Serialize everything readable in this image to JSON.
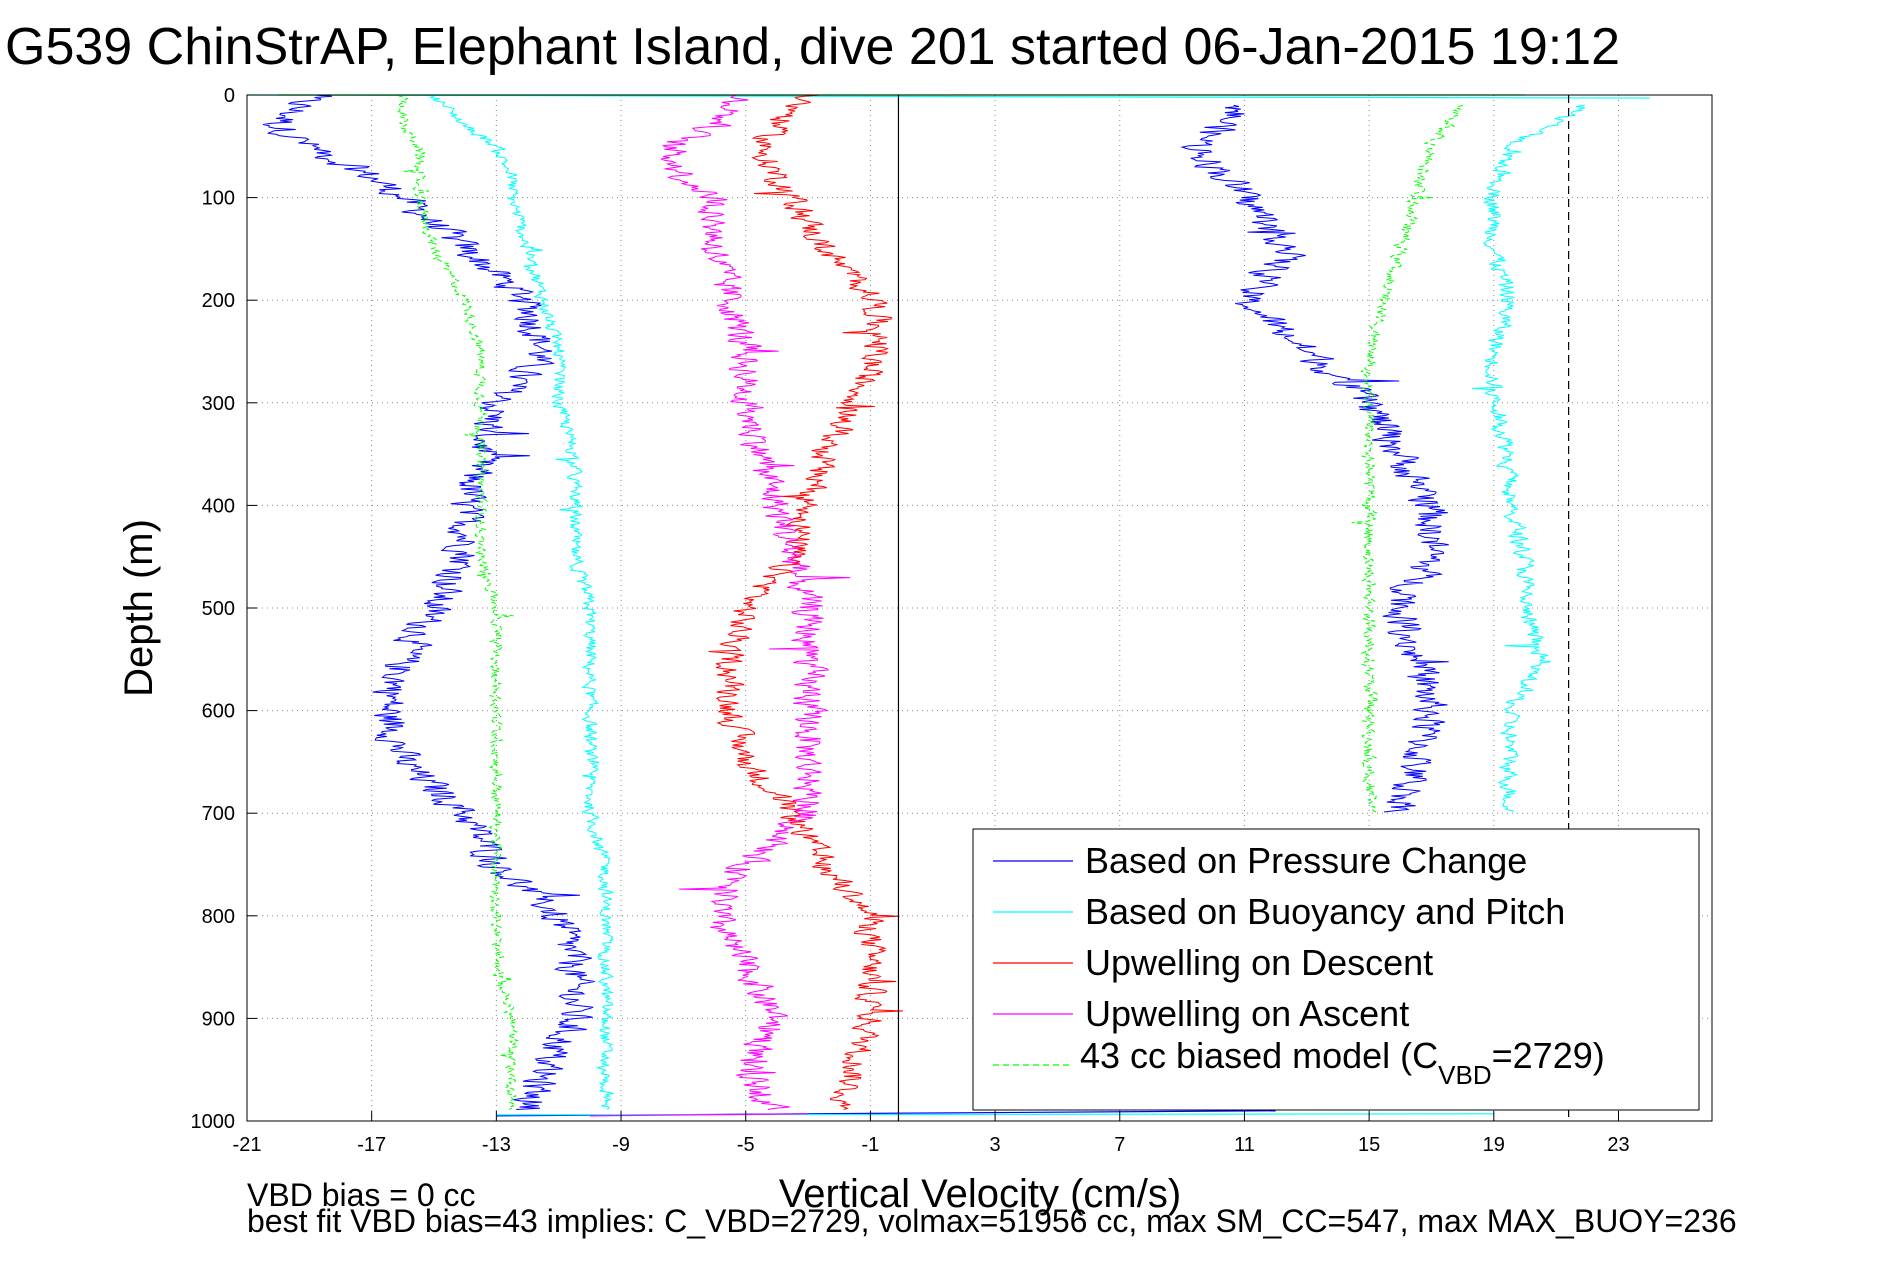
{
  "chart_data": {
    "type": "line",
    "title": "G539 ChinStrAP, Elephant Island, dive 201 started 06-Jan-2015 19:12",
    "xlabel": "Vertical Velocity (cm/s)",
    "ylabel": "Depth (m)",
    "xlim": [
      -21,
      26
    ],
    "ylim": [
      1000,
      0
    ],
    "y_reversed": true,
    "grid": true,
    "x_ticks": [
      -21,
      -17,
      -13,
      -9,
      -5,
      -1,
      3,
      7,
      11,
      15,
      19,
      23
    ],
    "y_ticks": [
      0,
      100,
      200,
      300,
      400,
      500,
      600,
      700,
      800,
      900,
      1000
    ],
    "vertical_reference_lines": [
      {
        "x": -0.1,
        "style": "solid",
        "color": "#000000"
      },
      {
        "x": 21.4,
        "style": "dashed",
        "color": "#000000"
      }
    ],
    "legend_position": "bottom-right",
    "legend": [
      {
        "label": "Based on Pressure Change",
        "color": "#0000ff",
        "style": "solid"
      },
      {
        "label": "Based on Buoyancy and Pitch",
        "color": "#00ffff",
        "style": "solid"
      },
      {
        "label": "Upwelling on Descent",
        "color": "#ff0000",
        "style": "solid"
      },
      {
        "label": "Upwelling on Ascent",
        "color": "#ff00ff",
        "style": "solid"
      },
      {
        "label_main": "43 cc biased model (C",
        "label_sub": "VBD",
        "label_tail": "=2729)",
        "color": "#00ff00",
        "style": "dashed"
      }
    ],
    "series": [
      {
        "id": "pressure-descent",
        "color": "#0000ff",
        "style": "solid",
        "noise": 0.8,
        "y": [
          0,
          30,
          50,
          80,
          100,
          150,
          200,
          250,
          300,
          350,
          400,
          450,
          500,
          550,
          600,
          650,
          700,
          750,
          800,
          850,
          900,
          950,
          990
        ],
        "x": [
          -19,
          -20,
          -19,
          -17,
          -16,
          -14,
          -12,
          -11.5,
          -13,
          -13.5,
          -14,
          -14,
          -15,
          -16,
          -16.5,
          -16,
          -14,
          -13,
          -11,
          -10.5,
          -10.5,
          -11.5,
          -12
        ]
      },
      {
        "id": "buoyancy-descent",
        "color": "#00ffff",
        "style": "solid",
        "noise": 0.3,
        "y": [
          0,
          30,
          50,
          80,
          100,
          150,
          200,
          250,
          300,
          350,
          400,
          450,
          500,
          550,
          600,
          650,
          700,
          750,
          800,
          850,
          900,
          950,
          990
        ],
        "x": [
          -15,
          -14,
          -13,
          -12.5,
          -12.5,
          -12,
          -11.5,
          -11,
          -11,
          -10.5,
          -10.5,
          -10.5,
          -10,
          -10,
          -10,
          -10,
          -10,
          -9.5,
          -9.5,
          -9.5,
          -9.5,
          -9.5,
          -9.5
        ]
      },
      {
        "id": "model-descent",
        "color": "#00ff00",
        "style": "dashed",
        "noise": 0.25,
        "y": [
          0,
          30,
          50,
          80,
          100,
          150,
          200,
          250,
          300,
          350,
          400,
          450,
          500,
          550,
          600,
          650,
          700,
          750,
          800,
          850,
          900,
          950,
          990
        ],
        "x": [
          -16,
          -16,
          -15.5,
          -15.5,
          -15.5,
          -15,
          -14,
          -13.5,
          -13.5,
          -13.5,
          -13.5,
          -13.5,
          -13,
          -13,
          -13,
          -13,
          -13,
          -13,
          -13,
          -13,
          -12.5,
          -12.5,
          -12.5
        ]
      },
      {
        "id": "upwelling-descent",
        "color": "#ff0000",
        "style": "solid",
        "noise": 0.6,
        "y": [
          0,
          30,
          50,
          80,
          100,
          150,
          200,
          250,
          300,
          350,
          400,
          450,
          500,
          550,
          600,
          650,
          700,
          750,
          800,
          850,
          900,
          950,
          990
        ],
        "x": [
          -3,
          -4,
          -4.5,
          -4,
          -3.5,
          -2.5,
          -0.8,
          -0.8,
          -1.5,
          -2.5,
          -3,
          -3.5,
          -5,
          -5.5,
          -5.5,
          -5,
          -3.5,
          -2.5,
          -1,
          -1,
          -1,
          -1.5,
          -2
        ]
      },
      {
        "id": "upwelling-ascent",
        "color": "#ff00ff",
        "style": "solid",
        "noise": 0.7,
        "y": [
          0,
          30,
          50,
          80,
          100,
          150,
          200,
          250,
          300,
          350,
          400,
          450,
          500,
          550,
          600,
          650,
          700,
          750,
          800,
          850,
          900,
          950,
          990
        ],
        "x": [
          -5,
          -6,
          -7.5,
          -7,
          -6,
          -6,
          -5.5,
          -5,
          -5,
          -4.5,
          -4,
          -3.5,
          -3,
          -3,
          -3,
          -3,
          -3,
          -5,
          -6,
          -5,
          -4,
          -5,
          -4
        ]
      },
      {
        "id": "pressure-ascent",
        "color": "#0000ff",
        "style": "solid",
        "noise": 0.8,
        "y": [
          10,
          50,
          100,
          150,
          200,
          250,
          300,
          350,
          400,
          450,
          500,
          550,
          600,
          650,
          700
        ],
        "x": [
          11,
          9.5,
          11,
          12.5,
          11,
          13,
          15,
          16,
          17,
          17,
          16,
          16.5,
          17,
          16.5,
          16
        ]
      },
      {
        "id": "buoyancy-ascent",
        "color": "#00ffff",
        "style": "solid",
        "noise": 0.4,
        "y": [
          10,
          50,
          100,
          150,
          200,
          250,
          300,
          350,
          400,
          450,
          500,
          550,
          600,
          650,
          700
        ],
        "x": [
          22,
          19.5,
          19,
          19,
          19.5,
          19,
          19,
          19.5,
          19.5,
          20,
          20,
          20.5,
          19.5,
          19.5,
          19.5
        ]
      },
      {
        "id": "model-ascent",
        "color": "#00ff00",
        "style": "dashed",
        "noise": 0.3,
        "y": [
          10,
          50,
          100,
          150,
          200,
          250,
          300,
          350,
          400,
          450,
          500,
          550,
          600,
          650,
          700
        ],
        "x": [
          18,
          17,
          16.5,
          16,
          15.5,
          15,
          15,
          15,
          15,
          15,
          15,
          15,
          15,
          15,
          15
        ]
      }
    ],
    "surface_segments": [
      {
        "color": "#00ffff",
        "from": [
          -21,
          0
        ],
        "to": [
          24,
          3
        ]
      },
      {
        "color": "#0000ff",
        "from": [
          -13,
          995
        ],
        "to": [
          12,
          990
        ]
      },
      {
        "color": "#00ffff",
        "from": [
          -13,
          994
        ],
        "to": [
          19,
          993
        ]
      },
      {
        "color": "#ff00ff",
        "from": [
          -10,
          995
        ],
        "to": [
          -3,
          993
        ]
      },
      {
        "color": "#00ff00",
        "from": [
          -20,
          0
        ],
        "to": [
          20,
          0
        ]
      }
    ]
  },
  "footer": {
    "line1": "VBD bias = 0 cc",
    "line2": "best fit VBD bias=43 implies: C_VBD=2729, volmax=51956 cc, max SM_CC=547, max MAX_BUOY=236"
  }
}
